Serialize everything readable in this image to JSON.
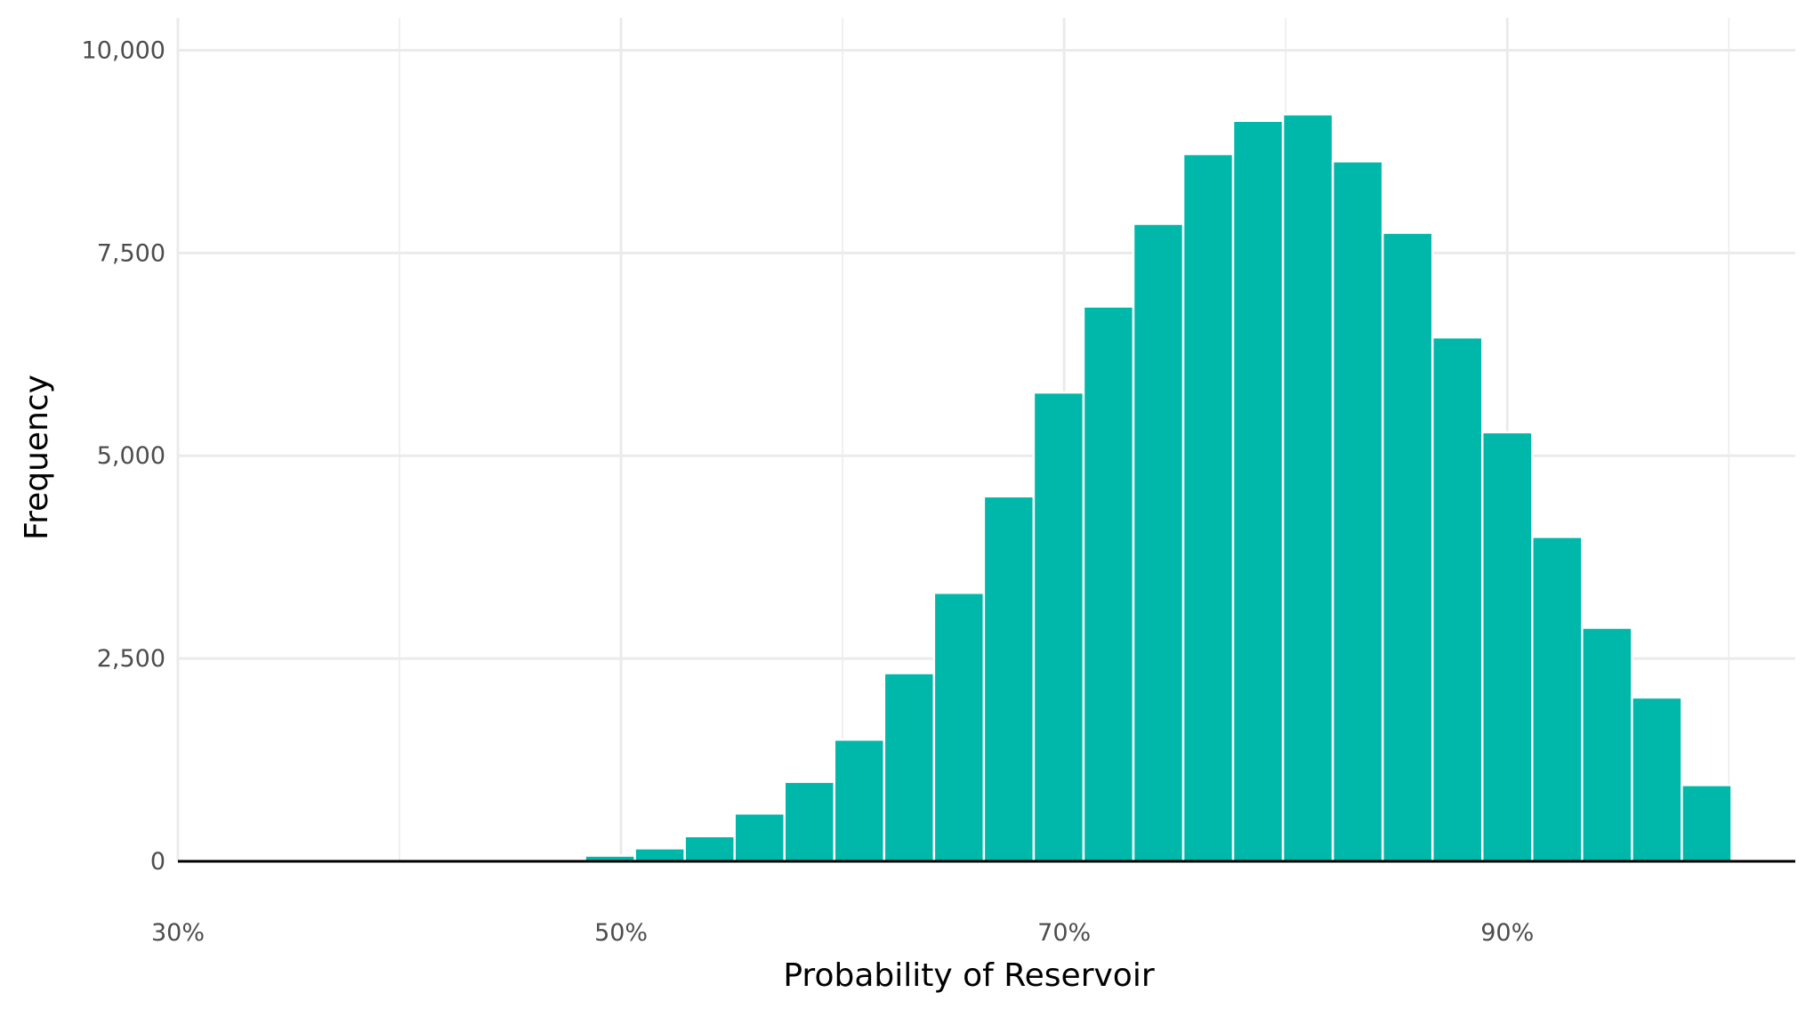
{
  "colors": {
    "bar": "#00B8AA"
  },
  "chart_data": {
    "type": "bar",
    "title": "",
    "xlabel": "Probability of Reservoir",
    "ylabel": "Frequency",
    "x_ticks": [
      "30%",
      "50%",
      "70%",
      "90%"
    ],
    "x_tick_values": [
      0.3,
      0.5,
      0.7,
      0.9
    ],
    "y_ticks": [
      "0",
      "2,500",
      "5,000",
      "7,500",
      "10,000"
    ],
    "y_tick_values": [
      0,
      2500,
      5000,
      7500,
      10000
    ],
    "xlim": [
      0.3,
      1.03
    ],
    "ylim": [
      0,
      10400
    ],
    "grid": true,
    "legend": "none",
    "bin_width": 0.0225,
    "x": [
      0.4725,
      0.495,
      0.5175,
      0.54,
      0.5625,
      0.585,
      0.6075,
      0.63,
      0.6525,
      0.675,
      0.6975,
      0.72,
      0.7425,
      0.765,
      0.7875,
      0.81,
      0.8325,
      0.855,
      0.8775,
      0.9,
      0.9225,
      0.945,
      0.9675,
      0.99
    ],
    "values": [
      20,
      70,
      160,
      310,
      590,
      980,
      1500,
      2320,
      3310,
      4500,
      5780,
      6840,
      7860,
      8720,
      9130,
      9210,
      8630,
      7750,
      6460,
      5290,
      4000,
      2880,
      2020,
      940
    ]
  }
}
